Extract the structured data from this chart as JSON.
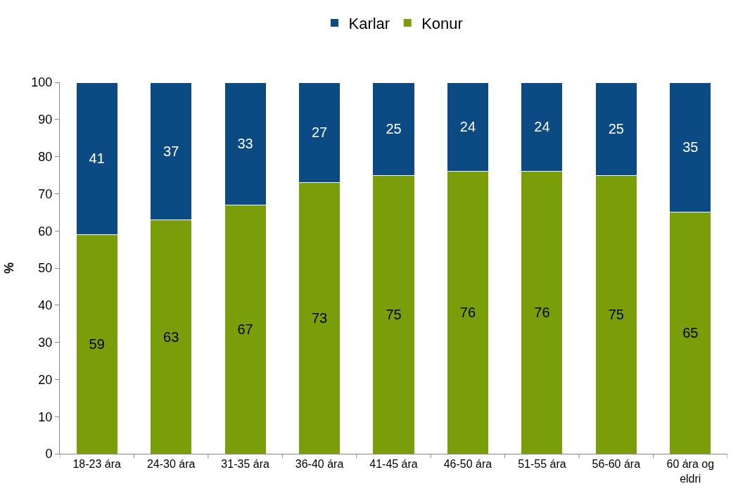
{
  "chart_data": {
    "type": "bar",
    "stacked": true,
    "ylabel": "%",
    "categories": [
      "18-23 ára",
      "24-30 ára",
      "31-35 ára",
      "36-40 ára",
      "41-45 ára",
      "46-50 ára",
      "51-55 ára",
      "56-60 ára",
      "60 ára og eldri"
    ],
    "series": [
      {
        "name": "Konur",
        "color": "#7a9e0a",
        "values": [
          59,
          63,
          67,
          73,
          75,
          76,
          76,
          75,
          65
        ]
      },
      {
        "name": "Karlar",
        "color": "#0b4a82",
        "values": [
          41,
          37,
          33,
          27,
          25,
          24,
          24,
          25,
          35
        ]
      }
    ],
    "ylim": [
      0,
      100
    ],
    "yticks": [
      0,
      10,
      20,
      30,
      40,
      50,
      60,
      70,
      80,
      90,
      100
    ],
    "grid": false,
    "legend": "top",
    "data_labels": true
  }
}
